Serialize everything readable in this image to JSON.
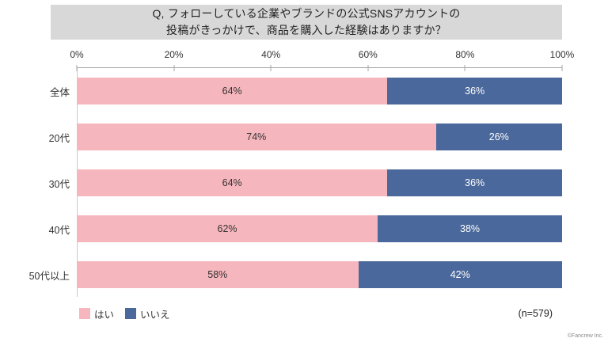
{
  "title": {
    "line1": "Q, フォローしている企業やブランドの公式SNSアカウントの",
    "line2": "投稿がきっかけで、商品を購入した経験はありますか？"
  },
  "chart_data": {
    "type": "bar",
    "orientation": "horizontal",
    "stacked": true,
    "percent_stacked": true,
    "categories": [
      "全体",
      "20代",
      "30代",
      "40代",
      "50代以上"
    ],
    "series": [
      {
        "name": "はい",
        "color": "#f6b6bd",
        "label_color": "#333333",
        "values": [
          64,
          74,
          64,
          62,
          58
        ]
      },
      {
        "name": "いいえ",
        "color": "#4a689b",
        "label_color": "#ffffff",
        "values": [
          36,
          26,
          36,
          38,
          42
        ]
      }
    ],
    "value_suffix": "%",
    "x_ticks": [
      "0%",
      "20%",
      "40%",
      "60%",
      "80%",
      "100%"
    ],
    "xlim": [
      0,
      100
    ],
    "grid": false,
    "legend_position": "bottom-left"
  },
  "footer": {
    "sample_size": "(n=579)",
    "copyright": "©Fancrew Inc."
  }
}
